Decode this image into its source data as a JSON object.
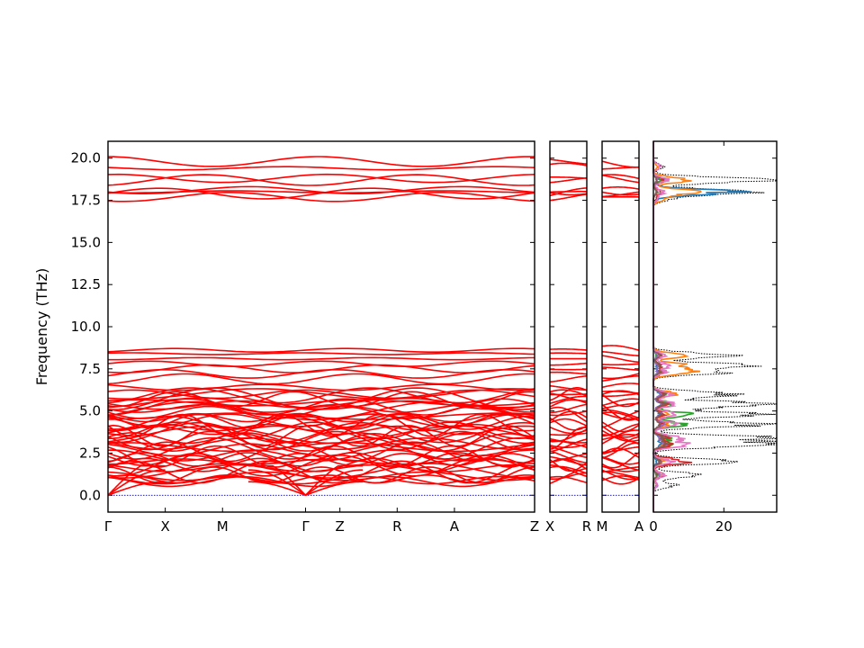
{
  "chart_data": {
    "type": "line",
    "ylabel": "Frequency (THz)",
    "ylim": [
      -1.0,
      21.0
    ],
    "yticks": [
      "0.0",
      "2.5",
      "5.0",
      "7.5",
      "10.0",
      "12.5",
      "15.0",
      "17.5",
      "20.0"
    ],
    "ytick_values": [
      0.0,
      2.5,
      5.0,
      7.5,
      10.0,
      12.5,
      15.0,
      17.5,
      20.0
    ],
    "band_colors": {
      "bands": "#ff0000",
      "zero_line": "#0000aa"
    },
    "panels": [
      {
        "kind": "band_structure",
        "segments": [
          {
            "labels": [
              "Γ",
              "X",
              "M",
              "Γ"
            ],
            "x": [
              0,
              1,
              2,
              3.45
            ]
          },
          {
            "labels": [
              "Γ",
              "Z",
              "R",
              "A",
              "Z"
            ],
            "x": [
              3.45,
              4.05,
              5.05,
              6.05,
              7.45
            ]
          }
        ],
        "xtick_labels": [
          "Γ",
          "X",
          "M",
          "Γ",
          "Z",
          "R",
          "A",
          "Z"
        ],
        "xtick_positions": [
          0,
          1,
          2,
          3.45,
          4.05,
          5.05,
          6.05,
          7.45
        ]
      },
      {
        "kind": "band_structure",
        "xtick_labels": [
          "X",
          "R"
        ],
        "xtick_positions": [
          0,
          1
        ]
      },
      {
        "kind": "band_structure",
        "xtick_labels": [
          "M",
          "A"
        ],
        "xtick_positions": [
          0,
          1
        ]
      },
      {
        "kind": "dos",
        "xlim": [
          0,
          35
        ],
        "xtick_labels": [
          "0",
          "20"
        ],
        "xtick_values": [
          0,
          20
        ],
        "series_colors": [
          "#000000",
          "#1f77b4",
          "#ff7f0e",
          "#2ca02c",
          "#d62728",
          "#9467bd",
          "#8c564b",
          "#e377c2"
        ],
        "peaks": [
          {
            "freq": 18.7,
            "total": 35,
            "proj": [
              3,
              10,
              2,
              3,
              1,
              1,
              4
            ]
          },
          {
            "freq": 18.0,
            "total": 33,
            "proj": [
              22,
              12,
              1,
              2,
              1,
              1,
              3
            ]
          },
          {
            "freq": 17.6,
            "total": 5,
            "proj": [
              1,
              3,
              0,
              1,
              0,
              0,
              1
            ]
          },
          {
            "freq": 19.5,
            "total": 3,
            "proj": [
              0,
              1,
              0,
              0,
              0,
              0,
              2
            ]
          },
          {
            "freq": 8.3,
            "total": 22,
            "proj": [
              1,
              8,
              1,
              2,
              1,
              2,
              3
            ]
          },
          {
            "freq": 7.7,
            "total": 25,
            "proj": [
              1,
              9,
              2,
              2,
              1,
              2,
              4
            ]
          },
          {
            "freq": 7.3,
            "total": 21,
            "proj": [
              1,
              10,
              2,
              3,
              1,
              2,
              3
            ]
          },
          {
            "freq": 6.0,
            "total": 24,
            "proj": [
              2,
              6,
              3,
              3,
              2,
              3,
              5
            ]
          },
          {
            "freq": 5.4,
            "total": 35,
            "proj": [
              2,
              5,
              6,
              4,
              2,
              3,
              6
            ]
          },
          {
            "freq": 4.8,
            "total": 30,
            "proj": [
              2,
              4,
              10,
              3,
              2,
              2,
              7
            ]
          },
          {
            "freq": 4.2,
            "total": 32,
            "proj": [
              2,
              4,
              8,
              3,
              3,
              2,
              8
            ]
          },
          {
            "freq": 3.4,
            "total": 33,
            "proj": [
              2,
              4,
              5,
              4,
              2,
              3,
              7
            ]
          },
          {
            "freq": 3.0,
            "total": 35,
            "proj": [
              2,
              3,
              4,
              5,
              3,
              3,
              9
            ]
          },
          {
            "freq": 2.0,
            "total": 24,
            "proj": [
              1,
              3,
              2,
              10,
              2,
              2,
              5
            ]
          },
          {
            "freq": 1.2,
            "total": 13,
            "proj": [
              1,
              2,
              1,
              3,
              2,
              1,
              3
            ]
          },
          {
            "freq": 0.6,
            "total": 6,
            "proj": [
              1,
              1,
              0,
              1,
              1,
              0,
              1
            ]
          }
        ]
      }
    ],
    "band_groups": {
      "optical_high": [
        17.7,
        17.9,
        18.0,
        18.1,
        18.7,
        18.8,
        19.4,
        19.8
      ],
      "mid": [
        6.0,
        6.4,
        6.9,
        7.2,
        7.5,
        7.8,
        8.1,
        8.4,
        8.6
      ],
      "low_dense_range": [
        0.8,
        6.0
      ]
    }
  }
}
